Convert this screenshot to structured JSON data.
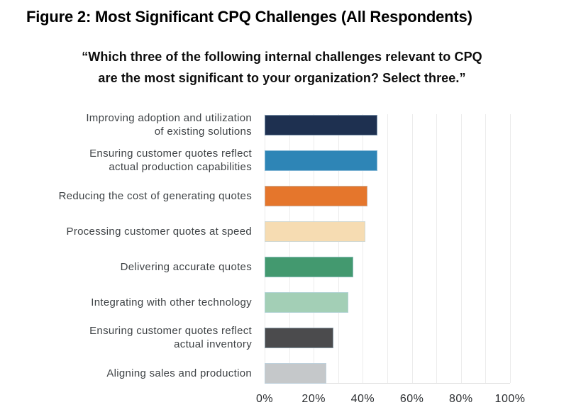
{
  "header": {
    "figure_title": "Figure 2: Most Significant CPQ Challenges (All Respondents)",
    "question_lines": [
      "“Which three of the following internal challenges relevant to CPQ",
      "are the most significant to your organization? Select three.”"
    ]
  },
  "chart_data": {
    "type": "bar",
    "orientation": "horizontal",
    "title": "Figure 2: Most Significant CPQ Challenges (All Respondents)",
    "subtitle": "“Which three of the following internal challenges relevant to CPQ are the most significant to your organization? Select three.”",
    "categories": [
      "Improving adoption and utilization of existing solutions",
      "Ensuring customer quotes reflect actual production capabilities",
      "Reducing the cost of generating quotes",
      "Processing customer quotes at speed",
      "Delivering accurate quotes",
      "Integrating with other technology",
      "Ensuring customer quotes reflect actual inventory",
      "Aligning sales and production"
    ],
    "label_lines": [
      [
        "Improving adoption and utilization",
        "of existing solutions"
      ],
      [
        "Ensuring customer quotes reflect",
        "actual production capabilities"
      ],
      [
        "Reducing the cost of generating quotes"
      ],
      [
        "Processing customer quotes at speed"
      ],
      [
        "Delivering accurate quotes"
      ],
      [
        "Integrating with other technology"
      ],
      [
        "Ensuring customer quotes reflect",
        "actual inventory"
      ],
      [
        "Aligning sales and production"
      ]
    ],
    "values": [
      46,
      46,
      42,
      41,
      36,
      34,
      28,
      25
    ],
    "unit": "%",
    "colors": [
      "#1e3050",
      "#2e85b6",
      "#e5762c",
      "#f6dcb2",
      "#43996f",
      "#a3cfb6",
      "#4b4b4d",
      "#c5c8ca"
    ],
    "xlabel": "",
    "ylabel": "",
    "xlim": [
      0,
      100
    ],
    "xticks": [
      0,
      20,
      40,
      60,
      80,
      100
    ],
    "xtick_labels": [
      "0%",
      "20%",
      "40%",
      "60%",
      "80%",
      "100%"
    ],
    "gridline_step": 10,
    "grid": true,
    "legend": false,
    "gridline_color": "#ececec",
    "axis_line_color": "#e0e0e0"
  }
}
